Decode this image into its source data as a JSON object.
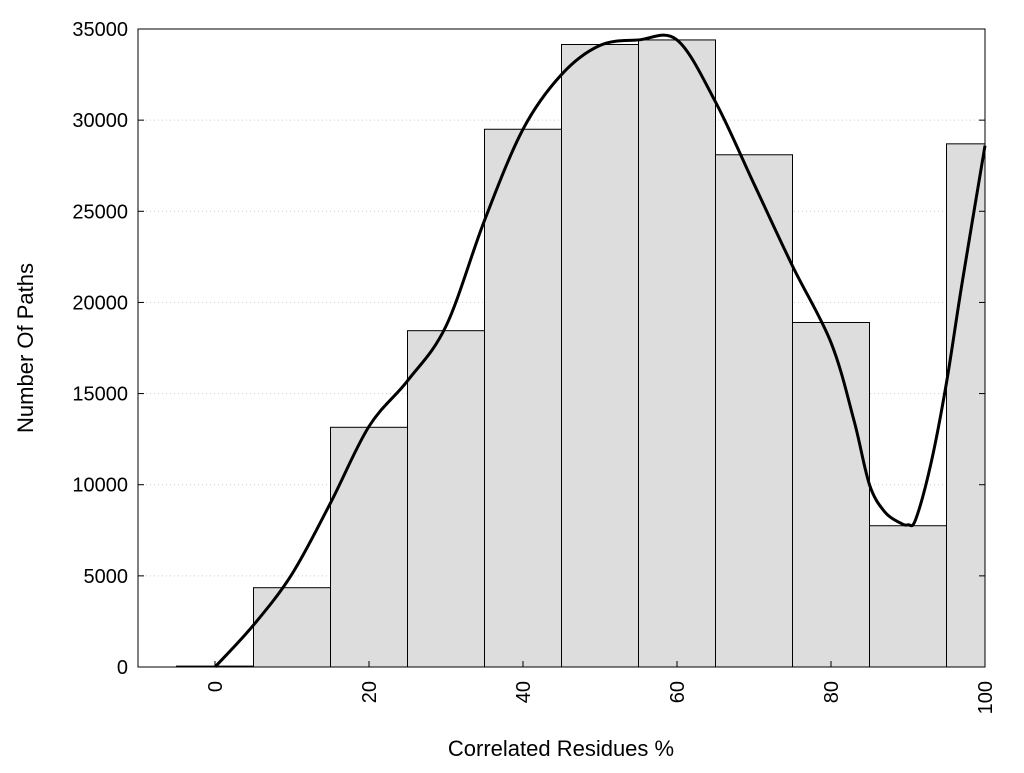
{
  "chart_data": {
    "type": "bar",
    "title": "",
    "xlabel": "Correlated Residues %",
    "ylabel": "Number Of Paths",
    "x": [
      0,
      10,
      20,
      30,
      40,
      50,
      60,
      70,
      80,
      90,
      100
    ],
    "values": [
      50,
      4350,
      13150,
      18450,
      29500,
      34150,
      34400,
      28100,
      18900,
      7750,
      28700
    ],
    "bin_width": 10,
    "xlim": [
      -10,
      100
    ],
    "ylim": [
      0,
      35000
    ],
    "xticks": [
      0,
      20,
      40,
      60,
      80,
      100
    ],
    "yticks": [
      0,
      5000,
      10000,
      15000,
      20000,
      25000,
      30000,
      35000
    ],
    "xtick_rotation": -90,
    "grid": "horizontal dotted",
    "legend": "none",
    "colors": {
      "bar_fill": "#dddddd",
      "bar_edge": "#000000",
      "curve": "#000000",
      "grid": "#cccccc"
    },
    "series": [
      {
        "type": "bar",
        "x": [
          0,
          10,
          20,
          30,
          40,
          50,
          60,
          70,
          80,
          90,
          100
        ],
        "values": [
          50,
          4350,
          13150,
          18450,
          29500,
          34150,
          34400,
          28100,
          18900,
          7750,
          28700
        ]
      },
      {
        "type": "line",
        "x": [
          0,
          5,
          10,
          15,
          20,
          25,
          30,
          35,
          40,
          45,
          50,
          55,
          60,
          65,
          70,
          75,
          80,
          83,
          85,
          87,
          89,
          90,
          91,
          93,
          95,
          97,
          100
        ],
        "values": [
          0,
          2300,
          5100,
          9000,
          13200,
          15700,
          18700,
          24500,
          29500,
          32500,
          34100,
          34400,
          34400,
          31000,
          26500,
          22000,
          17800,
          13500,
          10000,
          8500,
          7900,
          7800,
          8100,
          11200,
          15600,
          21000,
          28600
        ]
      }
    ]
  }
}
